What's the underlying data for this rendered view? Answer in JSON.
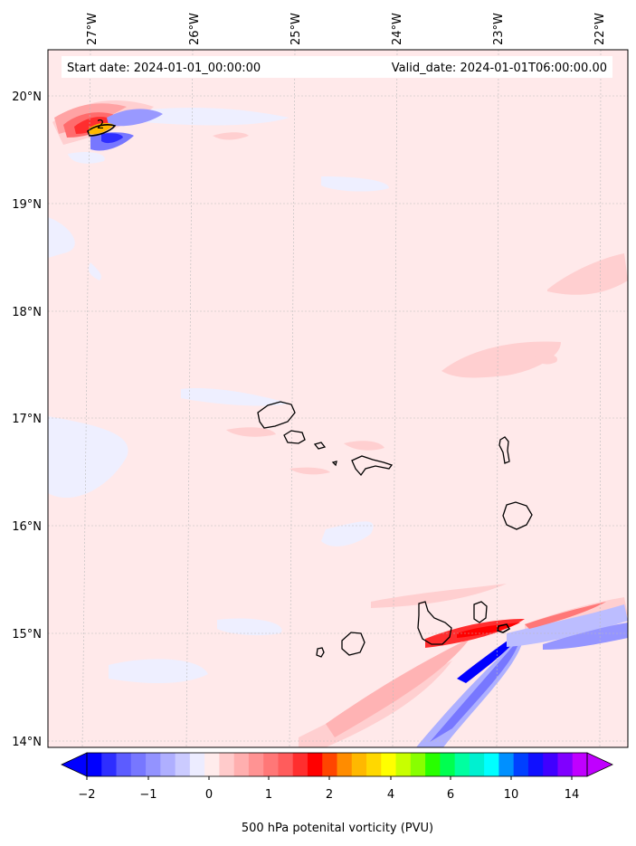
{
  "header": {
    "start_date": "Start date: 2024-01-01_00:00:00",
    "valid_date": "Valid_date: 2024-01-01T06:00:00.00"
  },
  "axes": {
    "lon_labels": [
      "27°W",
      "26°W",
      "25°W",
      "24°W",
      "23°W",
      "22°W"
    ],
    "lat_labels": [
      "20°N",
      "19°N",
      "18°N",
      "17°N",
      "16°N",
      "15°N",
      "14°N"
    ]
  },
  "contour_labels": [
    "2"
  ],
  "colorbar": {
    "label": "500 hPa potenital vorticity (PVU)",
    "ticks": [
      "−2",
      "−1",
      "0",
      "1",
      "2",
      "4",
      "6",
      "10",
      "14"
    ],
    "colors": [
      "#0000ff",
      "#2e2eff",
      "#5c5cff",
      "#7777ff",
      "#9393ff",
      "#afafff",
      "#cbcbff",
      "#ececff",
      "#ffecec",
      "#ffcbcb",
      "#ffafaf",
      "#ff9393",
      "#ff7777",
      "#ff5c5c",
      "#ff2e2e",
      "#ff0000",
      "#ff4500",
      "#ff8c00",
      "#ffb800",
      "#ffd800",
      "#ffff00",
      "#c8ff00",
      "#88ff00",
      "#28ff00",
      "#00ff50",
      "#00ffa0",
      "#00f0d0",
      "#00ffff",
      "#0090ff",
      "#0040ff",
      "#1010ff",
      "#4000ff",
      "#8000ff",
      "#c000ff"
    ]
  }
}
